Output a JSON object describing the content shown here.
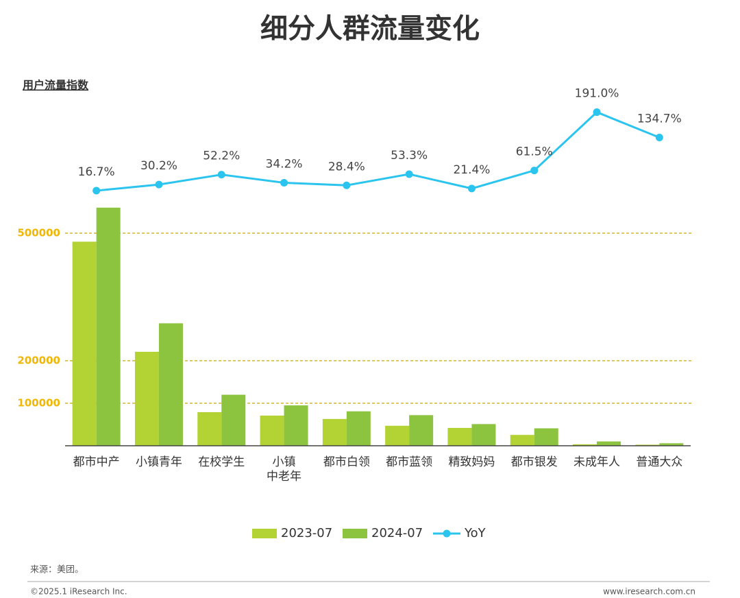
{
  "chart_data": {
    "type": "bar",
    "title": "细分人群流量变化",
    "y_label": "用户流量指数",
    "categories": [
      "都市中产",
      "小镇青年",
      "在校学生",
      "小镇\n中老年",
      "都市白领",
      "都市蓝领",
      "精致妈妈",
      "都市银发",
      "未成年人",
      "普通大众"
    ],
    "series": [
      {
        "name": "2023-07",
        "color": "#b3d234",
        "values": [
          480000,
          221000,
          79000,
          71000,
          63000,
          47000,
          42000,
          25500,
          3500,
          2500
        ]
      },
      {
        "name": "2024-07",
        "color": "#8cc43f",
        "values": [
          560000,
          288000,
          120000,
          95000,
          81000,
          72000,
          51000,
          41000,
          10200,
          5900
        ]
      },
      {
        "name": "YoY",
        "type": "line",
        "axis": "y2",
        "color": "#2ac4ee",
        "values": [
          16.7,
          30.2,
          52.2,
          34.2,
          28.4,
          53.3,
          21.4,
          61.5,
          191.0,
          134.7
        ],
        "value_labels": [
          "16.7%",
          "30.2%",
          "52.2%",
          "34.2%",
          "28.4%",
          "53.3%",
          "21.4%",
          "61.5%",
          "191.0%",
          "134.7%"
        ]
      }
    ],
    "ylim": [
      0,
      900000
    ],
    "yticks": [
      100000,
      200000,
      500000
    ],
    "y2lim": [
      -550,
      300
    ],
    "grid": true,
    "legend": "bottom",
    "source": "来源：美团。",
    "footer_left": "©2025.1 iResearch Inc.",
    "footer_right": "www.iresearch.com.cn"
  }
}
